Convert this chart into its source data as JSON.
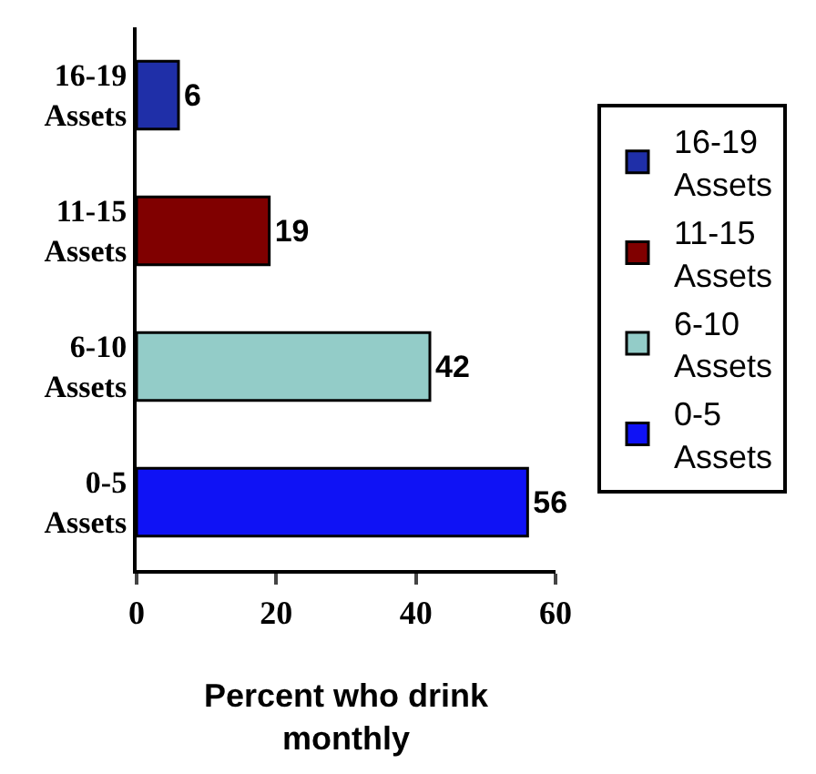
{
  "chart_data": {
    "type": "bar",
    "orientation": "horizontal",
    "xlabel": "Percent who drink monthly",
    "categories": [
      "16-19 Assets",
      "11-15 Assets",
      "6-10 Assets",
      "0-5 Assets"
    ],
    "series": [
      {
        "name": "16-19 Assets",
        "color": "#1f2fa8",
        "values": [
          6,
          null,
          null,
          null
        ]
      },
      {
        "name": "11-15 Assets",
        "color": "#800000",
        "values": [
          null,
          19,
          null,
          null
        ]
      },
      {
        "name": "6-10 Assets",
        "color": "#93ccc8",
        "values": [
          null,
          null,
          42,
          null
        ]
      },
      {
        "name": "0-5 Assets",
        "color": "#0f12f5",
        "values": [
          null,
          null,
          null,
          56
        ]
      }
    ],
    "xlim": [
      0,
      60
    ],
    "xticks": [
      0,
      20,
      40,
      60
    ],
    "data_labels": true,
    "legend": "right"
  }
}
